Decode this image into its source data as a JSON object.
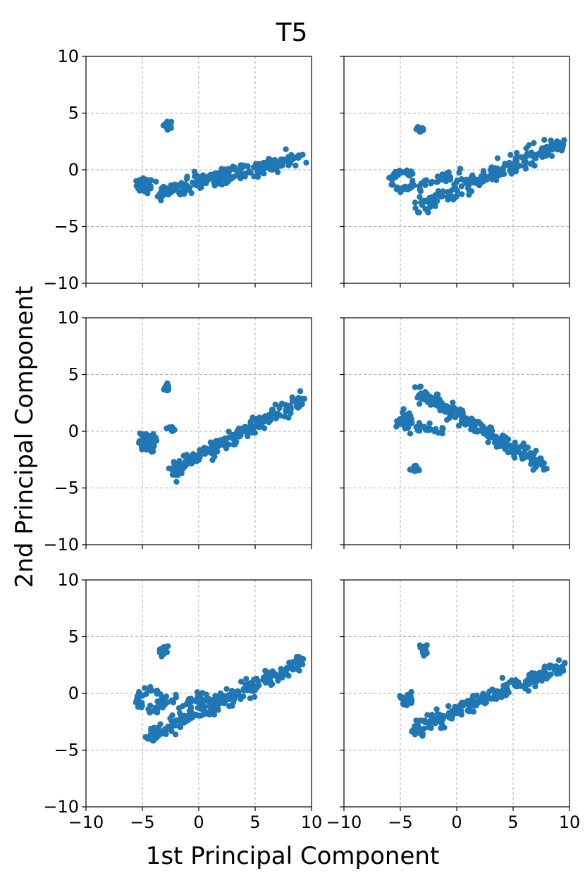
{
  "chart_data": {
    "type": "scatter",
    "title": "T5",
    "xlabel": "1st Principal Component",
    "ylabel": "2nd Principal Component",
    "xlim": [
      -10,
      10
    ],
    "ylim": [
      -10,
      10
    ],
    "xticks": [
      -10,
      -5,
      0,
      5,
      10
    ],
    "yticks": [
      -10,
      -5,
      0,
      5,
      10
    ],
    "xtick_labels": [
      "−10",
      "−5",
      "0",
      "5",
      "10"
    ],
    "ytick_labels": [
      "−10",
      "−5",
      "0",
      "5",
      "10"
    ],
    "grid": true,
    "marker_color": "#1f77b4",
    "grid_color": "#b0b0b0",
    "layout": "3 rows x 2 columns, shared axes",
    "panels": [
      {
        "name": "row1-left",
        "clusters": [
          {
            "kind": "blob",
            "center": [
              -2.7,
              4.0
            ],
            "spread": [
              0.35,
              0.3
            ],
            "n": 22
          },
          {
            "kind": "blob",
            "center": [
              -4.8,
              -1.4
            ],
            "spread": [
              0.6,
              0.55
            ],
            "n": 45
          },
          {
            "kind": "band",
            "from": [
              -3.5,
              -2.0
            ],
            "to": [
              9.3,
              1.1
            ],
            "width": 0.35,
            "n": 220
          }
        ]
      },
      {
        "name": "row1-right",
        "clusters": [
          {
            "kind": "blob",
            "center": [
              -3.2,
              3.6
            ],
            "spread": [
              0.3,
              0.35
            ],
            "n": 20
          },
          {
            "kind": "loop",
            "center": [
              -4.8,
              -1.0
            ],
            "radius": [
              0.9,
              0.8
            ],
            "n": 40
          },
          {
            "kind": "band",
            "from": [
              -3.5,
              -1.5
            ],
            "to": [
              0.5,
              -0.2
            ],
            "width": 0.25,
            "n": 30
          },
          {
            "kind": "band",
            "from": [
              -3.6,
              -3.4
            ],
            "to": [
              9.5,
              2.5
            ],
            "width": 0.4,
            "n": 230
          }
        ]
      },
      {
        "name": "row2-left",
        "clusters": [
          {
            "kind": "blob",
            "center": [
              -2.9,
              3.8
            ],
            "spread": [
              0.3,
              0.3
            ],
            "n": 22
          },
          {
            "kind": "blob",
            "center": [
              -4.6,
              -1.0
            ],
            "spread": [
              0.6,
              0.7
            ],
            "n": 55
          },
          {
            "kind": "blob",
            "center": [
              -2.5,
              0.2
            ],
            "spread": [
              0.3,
              0.2
            ],
            "n": 12
          },
          {
            "kind": "band",
            "from": [
              -2.5,
              -3.5
            ],
            "to": [
              9.2,
              2.8
            ],
            "width": 0.35,
            "n": 230
          }
        ]
      },
      {
        "name": "row2-right",
        "clusters": [
          {
            "kind": "blob",
            "center": [
              -3.7,
              -3.2
            ],
            "spread": [
              0.25,
              0.3
            ],
            "n": 20
          },
          {
            "kind": "blob",
            "center": [
              -4.5,
              0.8
            ],
            "spread": [
              0.6,
              0.7
            ],
            "n": 45
          },
          {
            "kind": "band",
            "from": [
              -3.5,
              0.5
            ],
            "to": [
              -1.0,
              -0.2
            ],
            "width": 0.25,
            "n": 25
          },
          {
            "kind": "band",
            "from": [
              -3.5,
              3.5
            ],
            "to": [
              7.8,
              -3.0
            ],
            "width": 0.35,
            "n": 230
          }
        ]
      },
      {
        "name": "row3-left",
        "clusters": [
          {
            "kind": "blob",
            "center": [
              -3.2,
              3.8
            ],
            "spread": [
              0.3,
              0.3
            ],
            "n": 22
          },
          {
            "kind": "loop",
            "center": [
              -4.3,
              -0.6
            ],
            "radius": [
              1.1,
              0.9
            ],
            "n": 55
          },
          {
            "kind": "band",
            "from": [
              -3.5,
              -0.6
            ],
            "to": [
              1.5,
              -0.5
            ],
            "width": 0.3,
            "n": 35
          },
          {
            "kind": "band",
            "from": [
              -4.5,
              -3.7
            ],
            "to": [
              9.2,
              2.8
            ],
            "width": 0.4,
            "n": 240
          }
        ]
      },
      {
        "name": "row3-right",
        "clusters": [
          {
            "kind": "blob",
            "center": [
              -2.9,
              3.8
            ],
            "spread": [
              0.3,
              0.3
            ],
            "n": 22
          },
          {
            "kind": "blob",
            "center": [
              -4.4,
              -0.5
            ],
            "spread": [
              0.6,
              0.35
            ],
            "n": 35
          },
          {
            "kind": "band",
            "from": [
              -4.0,
              -3.2
            ],
            "to": [
              9.5,
              2.4
            ],
            "width": 0.35,
            "n": 240
          }
        ]
      }
    ]
  }
}
